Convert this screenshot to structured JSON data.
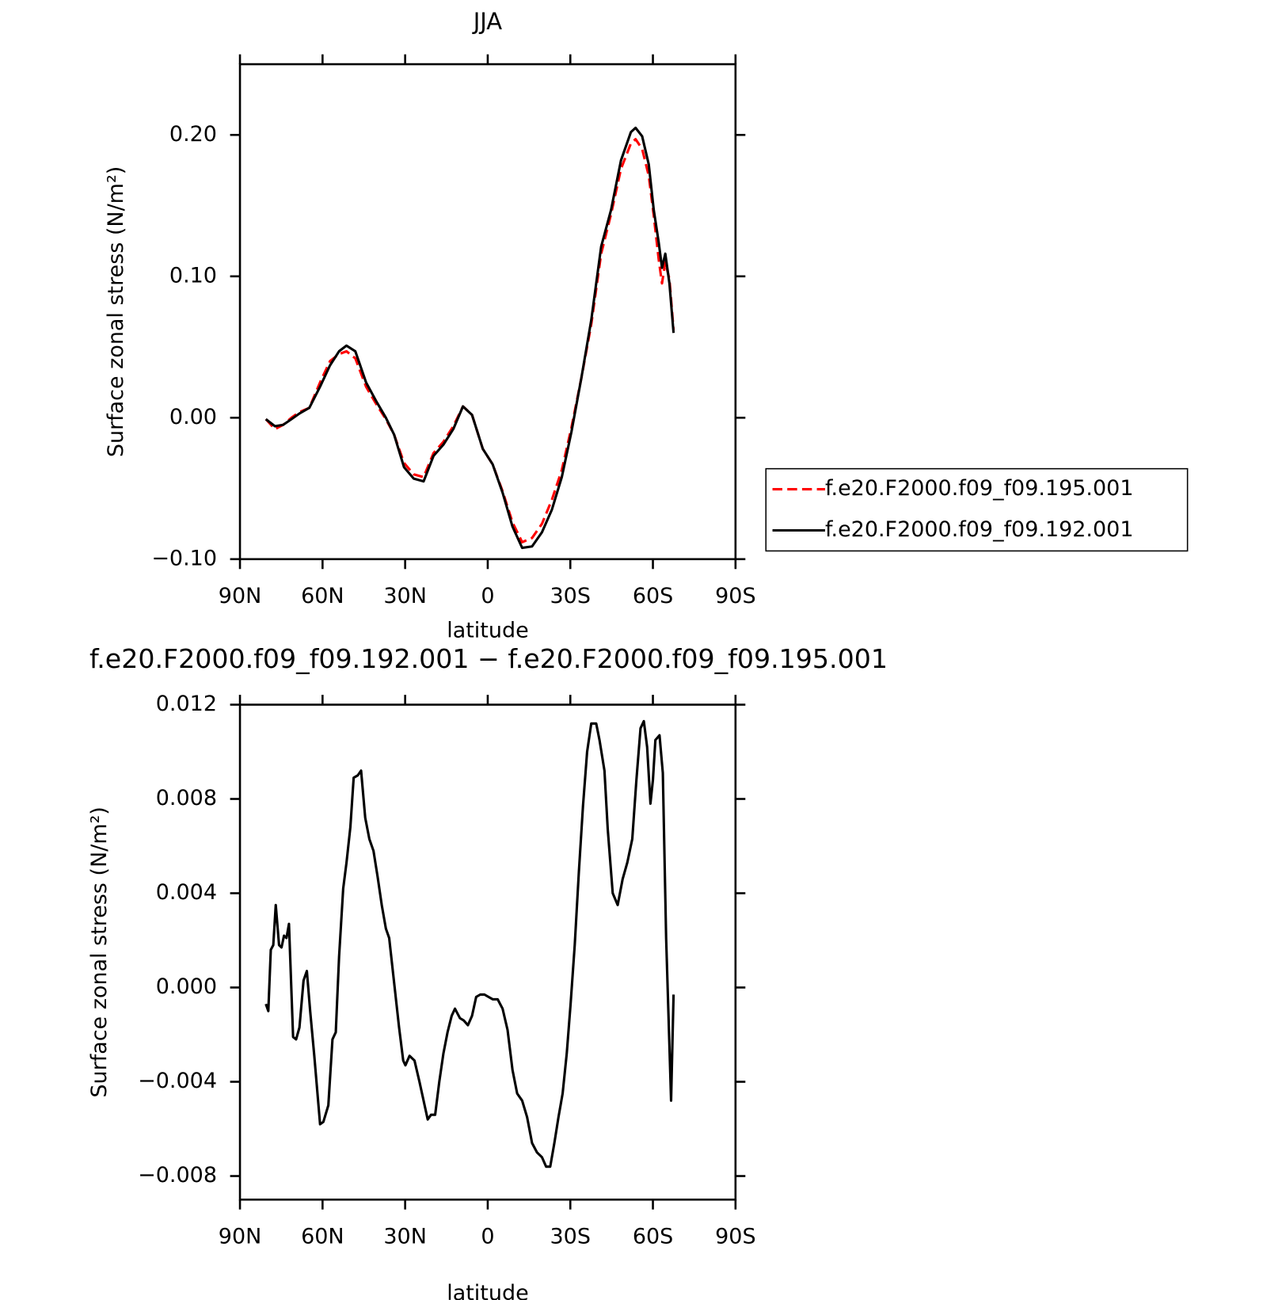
{
  "chart_data": [
    {
      "type": "line",
      "title": "JJA",
      "xlabel": "latitude",
      "ylabel": "Surface zonal stress (N/m²)",
      "x": [
        80.6,
        77.3,
        74.3,
        71.3,
        68.4,
        64.8,
        60.9,
        57.3,
        54.0,
        51.3,
        48.1,
        44.2,
        40.6,
        37.0,
        34.0,
        30.4,
        26.9,
        23.3,
        19.7,
        16.1,
        12.5,
        9.0,
        5.7,
        1.8,
        -1.8,
        -5.4,
        -9.0,
        -12.5,
        -16.1,
        -19.7,
        -23.3,
        -26.9,
        -30.4,
        -34.0,
        -37.6,
        -41.2,
        -44.8,
        -48.4,
        -52.0,
        -53.7,
        -56.1,
        -58.5,
        -60.3,
        -62.1,
        -63.3,
        -64.5,
        -66.0,
        -67.5
      ],
      "series": [
        {
          "name": "f.e20.F2000.f09_f09.195.001",
          "color": "#ff0000",
          "dash": true,
          "values": [
            -0.001,
            -0.008,
            -0.005,
            0.0,
            0.004,
            0.007,
            0.025,
            0.04,
            0.045,
            0.047,
            0.042,
            0.022,
            0.01,
            -0.001,
            -0.012,
            -0.032,
            -0.04,
            -0.042,
            -0.025,
            -0.017,
            -0.006,
            0.008,
            0.002,
            -0.022,
            -0.033,
            -0.052,
            -0.074,
            -0.088,
            -0.085,
            -0.075,
            -0.058,
            -0.037,
            -0.007,
            0.028,
            0.066,
            0.116,
            0.144,
            0.176,
            0.194,
            0.197,
            0.19,
            0.171,
            0.143,
            0.112,
            0.095,
            0.11,
            0.098,
            0.062
          ]
        },
        {
          "name": "f.e20.F2000.f09_f09.192.001",
          "color": "#000000",
          "dash": false,
          "values": [
            -0.001,
            -0.006,
            -0.005,
            -0.001,
            0.003,
            0.007,
            0.022,
            0.037,
            0.047,
            0.051,
            0.047,
            0.025,
            0.012,
            0.0,
            -0.012,
            -0.035,
            -0.043,
            -0.045,
            -0.027,
            -0.019,
            -0.008,
            0.008,
            0.002,
            -0.022,
            -0.033,
            -0.053,
            -0.077,
            -0.092,
            -0.091,
            -0.081,
            -0.065,
            -0.042,
            -0.01,
            0.028,
            0.069,
            0.121,
            0.147,
            0.182,
            0.202,
            0.205,
            0.199,
            0.179,
            0.147,
            0.124,
            0.106,
            0.116,
            0.095,
            0.06
          ]
        }
      ],
      "xlim": [
        90,
        -90
      ],
      "xticks": [
        {
          "value": 90,
          "label": "90N"
        },
        {
          "value": 60,
          "label": "60N"
        },
        {
          "value": 30,
          "label": "30N"
        },
        0,
        {
          "value": -30,
          "label": "30S"
        },
        {
          "value": -60,
          "label": "60S"
        },
        {
          "value": -90,
          "label": "90S"
        }
      ],
      "ylim": [
        -0.1,
        0.25
      ],
      "yticks": [
        {
          "value": -0.1,
          "label": "−0.10"
        },
        {
          "value": 0,
          "label": "0.00"
        },
        {
          "value": 0.1,
          "label": "0.10"
        },
        {
          "value": 0.2,
          "label": "0.20"
        }
      ],
      "legend": "right"
    },
    {
      "type": "line",
      "title": "f.e20.F2000.f09_f09.192.001 − f.e20.F2000.f09_f09.195.001",
      "xlabel": "latitude",
      "ylabel": "Surface zonal stress (N/m²)",
      "x": [
        80.6,
        79.7,
        78.8,
        77.9,
        77.0,
        75.8,
        74.9,
        74.0,
        73.1,
        72.2,
        70.7,
        69.6,
        68.4,
        66.9,
        65.7,
        64.5,
        63.0,
        60.9,
        59.7,
        57.9,
        56.4,
        55.2,
        54.0,
        52.5,
        51.3,
        49.9,
        48.7,
        47.2,
        46.0,
        44.5,
        43.0,
        41.5,
        40.0,
        38.5,
        37.0,
        35.8,
        34.0,
        32.2,
        30.7,
        29.9,
        28.4,
        26.6,
        24.8,
        23.3,
        21.8,
        20.6,
        19.1,
        17.6,
        16.1,
        14.6,
        13.1,
        11.9,
        10.1,
        8.7,
        7.2,
        5.7,
        4.2,
        2.7,
        1.2,
        -0.3,
        -1.8,
        -3.6,
        -5.4,
        -7.2,
        -9.0,
        -10.7,
        -12.5,
        -14.3,
        -16.1,
        -17.9,
        -19.7,
        -21.2,
        -22.7,
        -24.2,
        -25.7,
        -27.2,
        -28.7,
        -30.1,
        -31.6,
        -33.1,
        -34.6,
        -36.1,
        -37.6,
        -39.4,
        -40.6,
        -42.4,
        -43.6,
        -45.4,
        -47.2,
        -49.0,
        -50.7,
        -52.5,
        -54.0,
        -55.5,
        -56.7,
        -57.9,
        -59.1,
        -60.0,
        -60.9,
        -62.4,
        -63.6,
        -64.8,
        -66.6,
        -67.5
      ],
      "series": [
        {
          "color": "#000000",
          "dash": false,
          "values": [
            -0.0007,
            -0.001,
            0.0016,
            0.0018,
            0.0035,
            0.0018,
            0.0017,
            0.0022,
            0.0021,
            0.0027,
            -0.0021,
            -0.0022,
            -0.0017,
            0.0003,
            0.0007,
            -0.001,
            -0.0029,
            -0.0058,
            -0.0057,
            -0.005,
            -0.0022,
            -0.0019,
            0.0013,
            0.0042,
            0.0053,
            0.0068,
            0.0089,
            0.009,
            0.0092,
            0.0072,
            0.0063,
            0.0058,
            0.0047,
            0.0035,
            0.0025,
            0.0021,
            0.0002,
            -0.0017,
            -0.0031,
            -0.0033,
            -0.0029,
            -0.0031,
            -0.004,
            -0.0048,
            -0.0056,
            -0.0054,
            -0.0054,
            -0.004,
            -0.0028,
            -0.0019,
            -0.0012,
            -0.0009,
            -0.0013,
            -0.0014,
            -0.0016,
            -0.0012,
            -0.0004,
            -0.0003,
            -0.0003,
            -0.0004,
            -0.0005,
            -0.0005,
            -0.0009,
            -0.0018,
            -0.0035,
            -0.0045,
            -0.0048,
            -0.0055,
            -0.0066,
            -0.007,
            -0.0072,
            -0.0076,
            -0.0076,
            -0.0066,
            -0.0055,
            -0.0045,
            -0.0028,
            -0.0007,
            0.0018,
            0.0049,
            0.0077,
            0.01,
            0.0112,
            0.0112,
            0.0105,
            0.0092,
            0.0067,
            0.004,
            0.0035,
            0.0046,
            0.0053,
            0.0063,
            0.0088,
            0.011,
            0.0113,
            0.0102,
            0.0078,
            0.0088,
            0.0105,
            0.0107,
            0.0091,
            0.0021,
            -0.0048,
            -0.0003
          ]
        }
      ],
      "xlim": [
        90,
        -90
      ],
      "xticks": [
        {
          "value": 90,
          "label": "90N"
        },
        {
          "value": 60,
          "label": "60N"
        },
        {
          "value": 30,
          "label": "30N"
        },
        0,
        {
          "value": -30,
          "label": "30S"
        },
        {
          "value": -60,
          "label": "60S"
        },
        {
          "value": -90,
          "label": "90S"
        }
      ],
      "ylim": [
        -0.009,
        0.012
      ],
      "yticks": [
        {
          "value": -0.008,
          "label": "−0.008"
        },
        {
          "value": -0.004,
          "label": "−0.004"
        },
        {
          "value": 0,
          "label": "0.000"
        },
        {
          "value": 0.004,
          "label": "0.004"
        },
        {
          "value": 0.008,
          "label": "0.008"
        },
        {
          "value": 0.012,
          "label": "0.012"
        }
      ]
    }
  ]
}
